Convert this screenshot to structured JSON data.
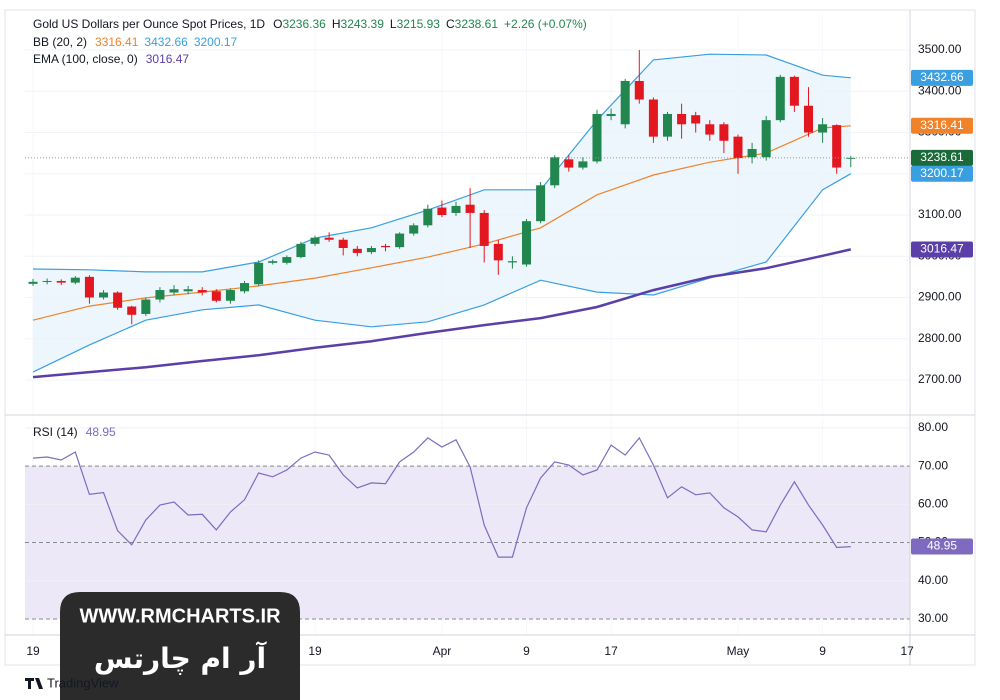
{
  "chart_data": {
    "type": "candlestick",
    "title": "Gold US Dollars per Ounce Spot Prices, 1D",
    "ohlc_labels": [
      "O",
      "H",
      "L",
      "C"
    ],
    "change_label": "+2.26 (+0.07%)",
    "up_color": "#22874f",
    "down_color": "#e3171f",
    "last_price_color": "#1b6b3a",
    "x": [
      0,
      1,
      2,
      3,
      4,
      5,
      6,
      7,
      8,
      9,
      10,
      11,
      12,
      13,
      14,
      15,
      16,
      17,
      18,
      19,
      20,
      21,
      22,
      23,
      24,
      25,
      26,
      27,
      28,
      29,
      30,
      31,
      32,
      33,
      34,
      35,
      36,
      37,
      38,
      39,
      40,
      41,
      42,
      43,
      44,
      45,
      46,
      47,
      48,
      49,
      50,
      51,
      52,
      53,
      54,
      55,
      56,
      57,
      58
    ],
    "xlim": [
      -0.57,
      62.2
    ],
    "xticks": [
      {
        "value": 0,
        "label": "19"
      },
      {
        "value": 20,
        "label": "19"
      },
      {
        "value": 29,
        "label": "Apr"
      },
      {
        "value": 35,
        "label": "9"
      },
      {
        "value": 41,
        "label": "17"
      },
      {
        "value": 50,
        "label": "May"
      },
      {
        "value": 56,
        "label": "9"
      },
      {
        "value": 62,
        "label": "17"
      }
    ],
    "open": [
      2933,
      2938,
      2940,
      2936,
      2950,
      2900,
      2912,
      2878,
      2860,
      2895,
      2912,
      2915,
      2918,
      2915,
      2892,
      2915,
      2932,
      2984,
      2984,
      2998,
      3030,
      3045,
      3040,
      3018,
      3010,
      3025,
      3022,
      3055,
      3075,
      3118,
      3105,
      3125,
      3105,
      3030,
      2985,
      2980,
      3085,
      3172,
      3235,
      3215,
      3230,
      3340,
      3320,
      3425,
      3380,
      3290,
      3345,
      3342,
      3320,
      3320,
      3290,
      3240,
      3240,
      3330,
      3435,
      3365,
      3300,
      3318,
      3236.36
    ],
    "high": [
      2945,
      2946,
      2944,
      2952,
      2954,
      2918,
      2915,
      2880,
      2900,
      2925,
      2930,
      2928,
      2925,
      2920,
      2922,
      2940,
      2990,
      2992,
      3002,
      3035,
      3050,
      3058,
      3045,
      3025,
      3025,
      3030,
      3058,
      3080,
      3125,
      3135,
      3132,
      3165,
      3112,
      3040,
      3000,
      3090,
      3180,
      3245,
      3245,
      3240,
      3355,
      3358,
      3430,
      3500,
      3385,
      3350,
      3370,
      3350,
      3330,
      3325,
      3295,
      3275,
      3340,
      3440,
      3438,
      3410,
      3335,
      3320,
      3243.39
    ],
    "low": [
      2928,
      2932,
      2930,
      2932,
      2885,
      2895,
      2870,
      2835,
      2855,
      2888,
      2905,
      2908,
      2905,
      2888,
      2885,
      2910,
      2928,
      2980,
      2980,
      2995,
      3025,
      3035,
      3002,
      3000,
      3005,
      3012,
      3018,
      3050,
      3070,
      3095,
      3098,
      3020,
      2985,
      2955,
      2970,
      2975,
      3080,
      3165,
      3205,
      3210,
      3225,
      3330,
      3310,
      3370,
      3275,
      3280,
      3285,
      3300,
      3280,
      3250,
      3200,
      3225,
      3232,
      3325,
      3350,
      3290,
      3275,
      3200,
      3215.93
    ],
    "close": [
      2938,
      2940,
      2936,
      2948,
      2900,
      2912,
      2875,
      2858,
      2895,
      2918,
      2920,
      2920,
      2912,
      2892,
      2918,
      2935,
      2984,
      2988,
      2998,
      3030,
      3045,
      3040,
      3020,
      3008,
      3020,
      3022,
      3055,
      3075,
      3115,
      3100,
      3122,
      3105,
      3025,
      2990,
      2988,
      3085,
      3172,
      3240,
      3215,
      3230,
      3345,
      3345,
      3425,
      3380,
      3290,
      3345,
      3320,
      3322,
      3295,
      3280,
      3238,
      3260,
      3330,
      3435,
      3365,
      3300,
      3320,
      3215,
      3238.61
    ],
    "ylim": [
      2615,
      3585
    ],
    "yticks": [
      {
        "value": 2700,
        "label": "2700.00"
      },
      {
        "value": 2800,
        "label": "2800.00"
      },
      {
        "value": 2900,
        "label": "2900.00"
      },
      {
        "value": 3000,
        "label": "3000.00"
      },
      {
        "value": 3100,
        "label": "3100.00"
      },
      {
        "value": 3200,
        "label": "3200.00"
      },
      {
        "value": 3300,
        "label": "3300.00"
      },
      {
        "value": 3400,
        "label": "3400.00"
      },
      {
        "value": 3500,
        "label": "3500.00"
      }
    ],
    "grid": true,
    "indicators": [
      {
        "label": "BB (20, 2)",
        "fill": "#e4f2fb",
        "x": [
          0,
          4,
          8,
          12,
          16,
          20,
          24,
          28,
          32,
          36,
          40,
          44,
          48,
          52,
          56,
          58
        ],
        "lines": [
          {
            "color": "#f0822a",
            "values": [
              2845,
              2879,
              2899,
              2913,
              2928,
              2947,
              2972,
              2998,
              3030,
              3069,
              3149,
              3197,
              3228,
              3250,
              3311,
              3316.41
            ]
          },
          {
            "color": "#3a9fe0",
            "values": [
              2969,
              2967,
              2962,
              2962,
              2986,
              3044,
              3069,
              3112,
              3161,
              3161,
              3330,
              3476,
              3490,
              3488,
              3439,
              3432.66
            ]
          },
          {
            "color": "#3a9fe0",
            "values": [
              2719,
              2785,
              2845,
              2870,
              2882,
              2845,
              2829,
              2841,
              2882,
              2942,
              2913,
              2906,
              2947,
              2986,
              3161,
              3200.17
            ]
          }
        ]
      },
      {
        "label": "EMA (100, close, 0)",
        "x": [
          0,
          4,
          8,
          12,
          16,
          20,
          24,
          28,
          32,
          36,
          40,
          44,
          48,
          52,
          56,
          58
        ],
        "lines": [
          {
            "color": "#5b3fa8",
            "values": [
              2707,
              2719,
              2731,
              2746,
              2760,
              2778,
              2794,
              2814,
              2833,
              2850,
              2877,
              2918,
              2950,
              2971,
              3001,
              3016.47
            ]
          }
        ]
      }
    ],
    "rsi": {
      "label": "RSI (14)",
      "color": "#7e6bbf",
      "band_color": "#ede8f7",
      "values": [
        72.1,
        72.4,
        71.6,
        73.7,
        62.6,
        63.1,
        53.1,
        49.4,
        55.9,
        59.8,
        60.6,
        57.2,
        57.4,
        53.3,
        58.0,
        61.2,
        68.2,
        67.2,
        69.0,
        72.1,
        73.7,
        72.9,
        67.7,
        64.3,
        65.6,
        65.4,
        71.1,
        73.7,
        77.4,
        75.0,
        76.9,
        69.8,
        54.6,
        46.2,
        46.2,
        59.1,
        66.9,
        71.1,
        70.3,
        67.7,
        69.0,
        75.5,
        72.9,
        77.4,
        70.3,
        61.7,
        64.6,
        62.5,
        63.0,
        59.1,
        56.7,
        53.3,
        52.8,
        59.8,
        65.9,
        59.8,
        54.6,
        48.7,
        48.95
      ],
      "ylim": [
        25.8,
        82.6
      ],
      "yticks": [
        {
          "value": 30,
          "label": "30.00"
        },
        {
          "value": 40,
          "label": "40.00"
        },
        {
          "value": 50,
          "label": "50.00"
        },
        {
          "value": 60,
          "label": "60.00"
        },
        {
          "value": 70,
          "label": "70.00"
        },
        {
          "value": 80,
          "label": "80.00"
        }
      ],
      "levels": [
        70,
        50,
        30
      ]
    }
  },
  "watermark": {
    "site": "WWW.RMCHARTS.IR",
    "name": "آر ام چارتس"
  },
  "brand": "TradingView"
}
